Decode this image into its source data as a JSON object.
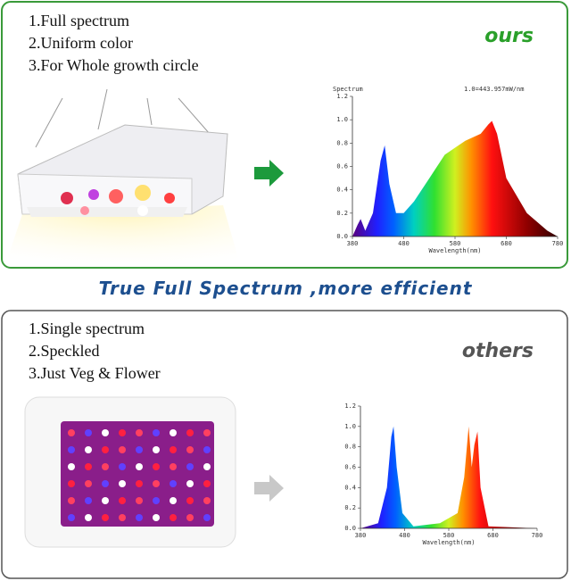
{
  "panels": [
    {
      "features": [
        "1.Full spectrum",
        "2.Uniform color",
        "3.For Whole growth circle"
      ],
      "tag": "ours",
      "chart": {
        "ylabel": "Spectrum",
        "note": "1.0=443.957mW/nm",
        "yticks": [
          "0.0",
          "0.2",
          "0.4",
          "0.6",
          "0.8",
          "1.0",
          "1.2"
        ],
        "xticks": [
          "380",
          "480",
          "580",
          "680",
          "780"
        ],
        "xlabel": "Wavelength(nm)"
      }
    },
    {
      "features": [
        "1.Single spectrum",
        "2.Speckled",
        "3.Just Veg & Flower"
      ],
      "tag": "others",
      "chart": {
        "yticks": [
          "0.0",
          "0.2",
          "0.4",
          "0.6",
          "0.8",
          "1.0",
          "1.2"
        ],
        "xticks": [
          "380",
          "480",
          "580",
          "680",
          "780"
        ],
        "xlabel": "Wavelength(nm)"
      }
    }
  ],
  "slogan": "True Full Spectrum ,more efficient"
}
